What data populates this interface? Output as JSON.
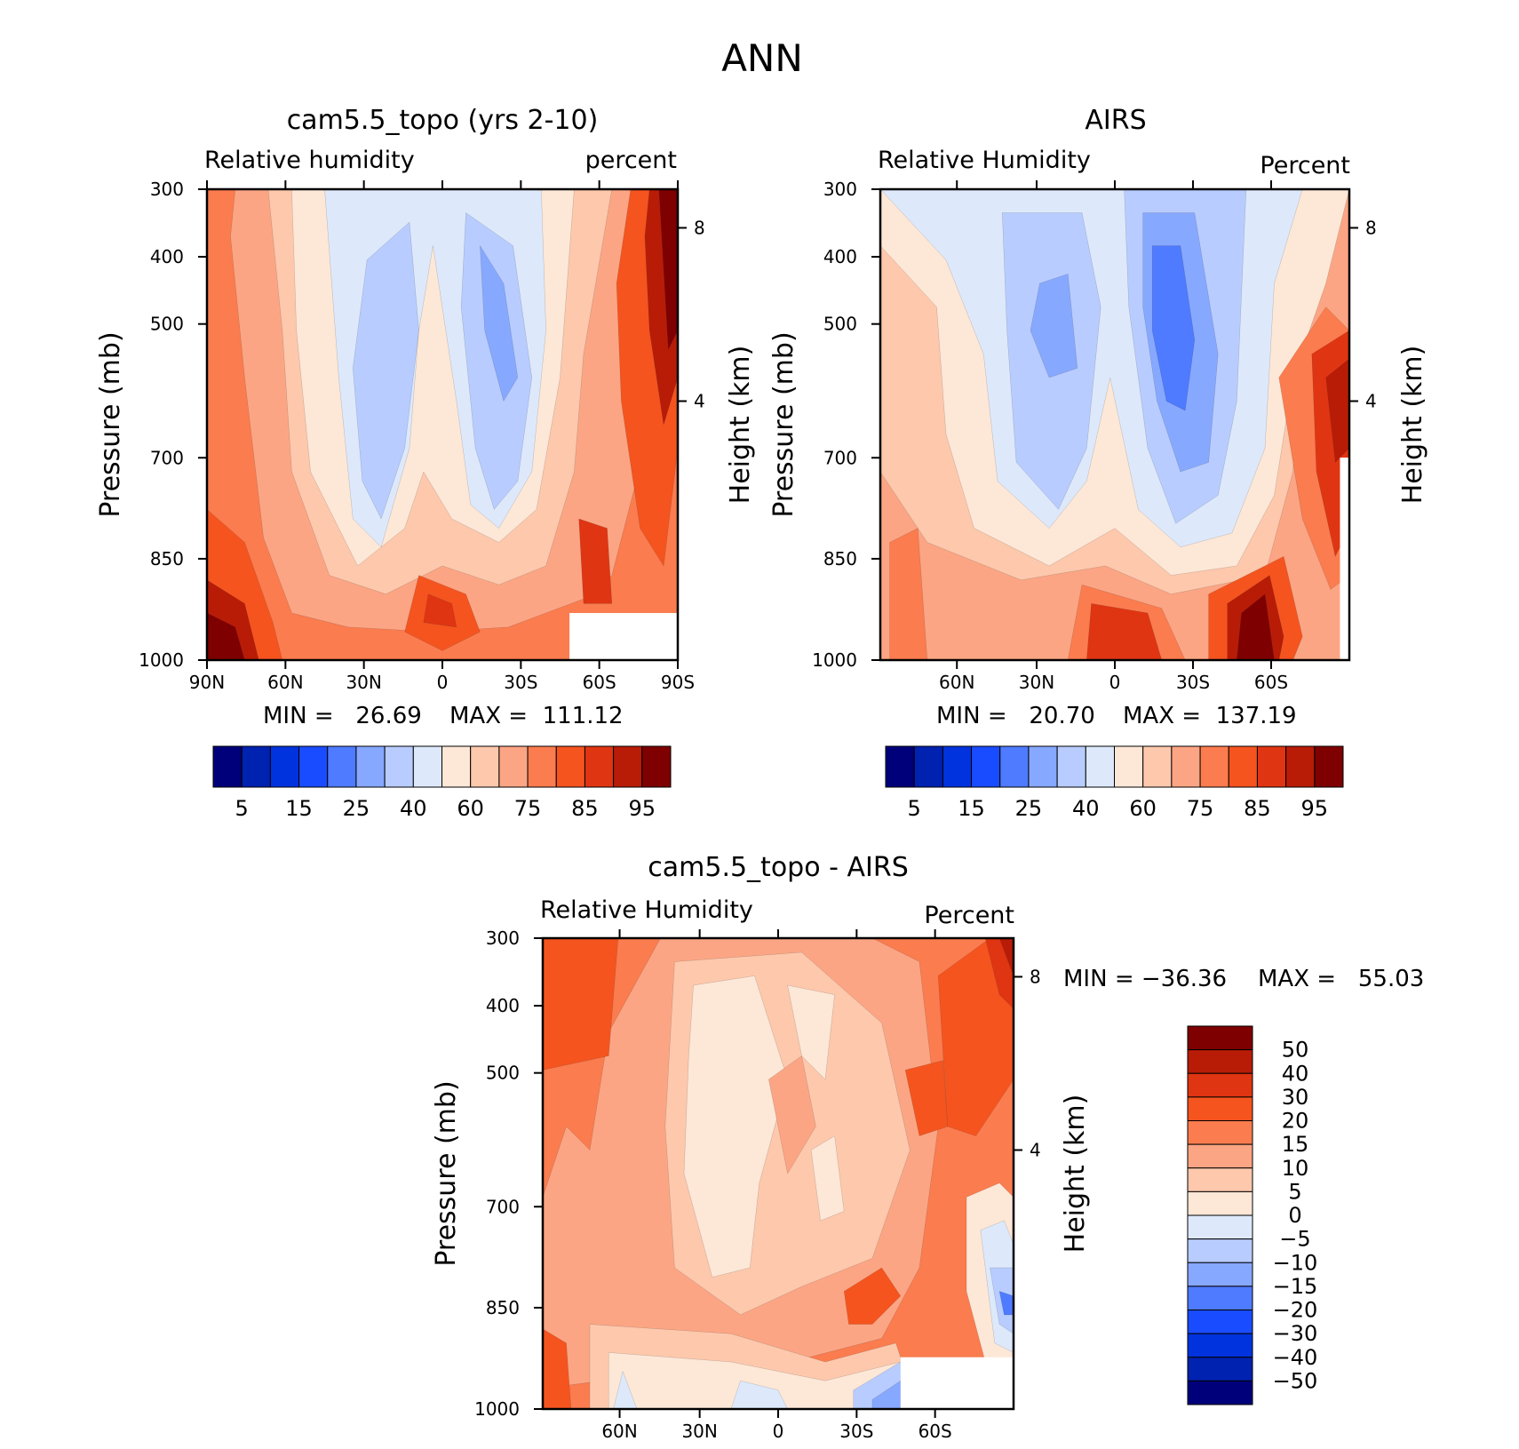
{
  "figure": {
    "title": "ANN"
  },
  "colors": {
    "abs_palette": [
      "#00007a",
      "#0022b0",
      "#0033dd",
      "#1a4cff",
      "#4e7bff",
      "#87a8ff",
      "#b8ccff",
      "#dde9fb",
      "#fde7d7",
      "#fdc8ac",
      "#fca584",
      "#fb7c4f",
      "#f5541f",
      "#e03512",
      "#b81c07",
      "#7e0000"
    ],
    "diff_palette": [
      "#00007a",
      "#0022b0",
      "#0033dd",
      "#1a4cff",
      "#4e7bff",
      "#87a8ff",
      "#b8ccff",
      "#dde9fb",
      "#fde7d7",
      "#fdc8ac",
      "#fca584",
      "#fb7c4f",
      "#f5541f",
      "#e03512",
      "#b81c07",
      "#7e0000"
    ]
  },
  "chart_data": [
    {
      "type": "heatmap",
      "title": "cam5.5_topo (yrs 2-10)",
      "left_label": "Relative humidity",
      "right_label": "percent",
      "ylabel": "Pressure (mb)",
      "y2label": "Height (km)",
      "x_ticks": [
        "90N",
        "60N",
        "30N",
        "0",
        "30S",
        "60S",
        "90S"
      ],
      "y_ticks": [
        "300",
        "400",
        "500",
        "700",
        "850",
        "1000"
      ],
      "y2_ticks": [
        "8",
        "4"
      ],
      "min_text": "MIN =   26.69",
      "max_text": "MAX =  111.12",
      "min": 26.69,
      "max": 111.12,
      "colorbar_labels": [
        "5",
        "15",
        "25",
        "40",
        "60",
        "75",
        "85",
        "95"
      ]
    },
    {
      "type": "heatmap",
      "title": "AIRS",
      "left_label": "Relative Humidity",
      "right_label": "Percent",
      "ylabel": "Pressure (mb)",
      "y2label": "Height (km)",
      "x_ticks": [
        "60N",
        "30N",
        "0",
        "30S",
        "60S"
      ],
      "y_ticks": [
        "300",
        "400",
        "500",
        "700",
        "850",
        "1000"
      ],
      "y2_ticks": [
        "8",
        "4"
      ],
      "min_text": "MIN =   20.70",
      "max_text": "MAX =  137.19",
      "min": 20.7,
      "max": 137.19,
      "colorbar_labels": [
        "5",
        "15",
        "25",
        "40",
        "60",
        "75",
        "85",
        "95"
      ]
    },
    {
      "type": "heatmap",
      "title": "cam5.5_topo - AIRS",
      "left_label": "Relative Humidity",
      "right_label": "Percent",
      "ylabel": "Pressure (mb)",
      "y2label": "Height (km)",
      "x_ticks": [
        "60N",
        "30N",
        "0",
        "30S",
        "60S"
      ],
      "y_ticks": [
        "300",
        "400",
        "500",
        "700",
        "850",
        "1000"
      ],
      "y2_ticks": [
        "8",
        "4"
      ],
      "min_text": "MIN = −36.36",
      "max_text": "MAX =   55.03",
      "min": -36.36,
      "max": 55.03,
      "colorbar_labels": [
        "50",
        "40",
        "30",
        "20",
        "15",
        "10",
        "5",
        "0",
        "−5",
        "−10",
        "−15",
        "−20",
        "−30",
        "−40",
        "−50"
      ]
    }
  ]
}
